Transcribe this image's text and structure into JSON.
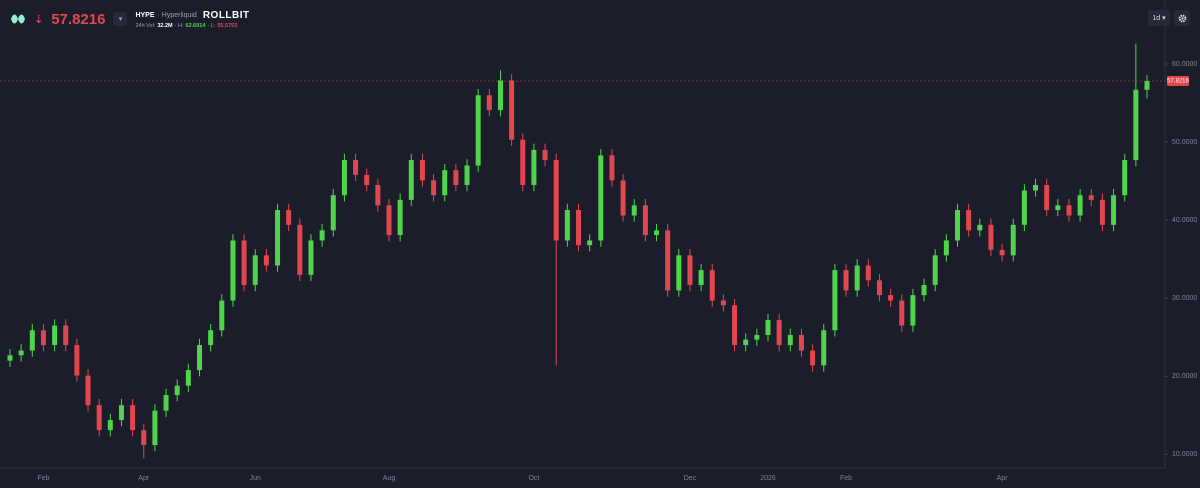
{
  "header": {
    "price": "57.8216",
    "symbol": "HYPE",
    "exchange": "· Hyperliquid",
    "brand": "ROLLBIT",
    "vol_label": "24h Vol:",
    "vol": "32.2M",
    "high_label": "· H:",
    "high": "62.6014",
    "low_label": "· L:",
    "low": "55.5753",
    "timeframe": "1d"
  },
  "chart_data": {
    "type": "candlestick",
    "categories": [
      null,
      null,
      null,
      "Feb",
      null,
      null,
      null,
      null,
      null,
      null,
      null,
      null,
      "Apr",
      null,
      null,
      null,
      null,
      null,
      null,
      null,
      null,
      null,
      "Jun",
      null,
      null,
      null,
      null,
      null,
      null,
      null,
      null,
      null,
      null,
      null,
      "Aug",
      null,
      null,
      null,
      null,
      null,
      null,
      null,
      null,
      null,
      null,
      null,
      null,
      "Oct",
      null,
      null,
      null,
      null,
      null,
      null,
      null,
      null,
      null,
      null,
      null,
      null,
      null,
      "Dec",
      null,
      null,
      null,
      null,
      null,
      null,
      "2026",
      null,
      null,
      null,
      null,
      null,
      null,
      "Feb",
      null,
      null,
      null,
      null,
      null,
      null,
      null,
      null,
      null,
      null,
      null,
      null,
      null,
      "Apr",
      null,
      null,
      null,
      null,
      null,
      null,
      null,
      null,
      null,
      null,
      null,
      null,
      null
    ],
    "open": [
      22.0,
      22.7,
      23.3,
      25.9,
      24.0,
      26.5,
      24.0,
      20.1,
      16.3,
      13.1,
      14.4,
      16.3,
      13.1,
      11.2,
      15.6,
      17.6,
      18.8,
      20.8,
      24.0,
      25.9,
      29.7,
      37.4,
      31.7,
      35.5,
      34.2,
      41.3,
      39.4,
      33.0,
      37.4,
      38.7,
      43.2,
      47.7,
      45.8,
      44.5,
      41.9,
      38.1,
      42.6,
      47.7,
      45.1,
      43.2,
      46.4,
      44.5,
      47.0,
      56.0,
      54.1,
      57.9,
      50.3,
      44.5,
      49.0,
      47.7,
      37.4,
      41.3,
      36.8,
      37.4,
      48.3,
      45.1,
      40.6,
      41.9,
      38.1,
      38.7,
      31.0,
      35.5,
      31.7,
      33.6,
      29.7,
      29.1,
      24.0,
      24.7,
      25.3,
      27.2,
      24.0,
      25.3,
      23.3,
      21.4,
      25.9,
      33.6,
      31.0,
      34.2,
      32.3,
      30.4,
      29.7,
      26.5,
      30.4,
      31.7,
      35.5,
      37.4,
      41.3,
      38.7,
      39.4,
      36.2,
      35.5,
      39.4,
      43.8,
      44.5,
      41.3,
      41.9,
      40.6,
      43.2,
      42.6,
      39.4,
      43.2,
      47.7,
      56.7
    ],
    "high": [
      23.5,
      24.1,
      26.7,
      26.7,
      27.3,
      27.3,
      24.8,
      20.9,
      17.1,
      15.2,
      17.1,
      17.1,
      13.9,
      16.4,
      18.4,
      19.6,
      21.6,
      24.8,
      26.7,
      30.5,
      38.2,
      38.2,
      36.3,
      36.3,
      42.1,
      42.1,
      40.2,
      38.2,
      39.5,
      44.0,
      48.5,
      48.5,
      46.6,
      45.3,
      42.7,
      43.4,
      48.5,
      48.5,
      45.9,
      47.2,
      47.2,
      47.8,
      56.8,
      56.8,
      59.2,
      58.7,
      51.1,
      49.8,
      49.8,
      48.5,
      42.1,
      42.1,
      38.2,
      49.1,
      49.1,
      45.9,
      42.7,
      42.7,
      39.5,
      39.5,
      36.3,
      36.3,
      34.4,
      34.4,
      30.5,
      29.9,
      25.5,
      26.1,
      28.0,
      28.0,
      26.1,
      26.1,
      24.1,
      26.7,
      34.4,
      34.4,
      35.0,
      35.0,
      33.1,
      31.2,
      30.5,
      31.2,
      32.5,
      36.3,
      38.2,
      42.1,
      42.1,
      40.2,
      40.2,
      37.0,
      40.2,
      44.6,
      45.3,
      45.3,
      42.7,
      42.7,
      44.0,
      44.0,
      43.4,
      44.0,
      48.5,
      62.6,
      58.6
    ],
    "low": [
      21.2,
      21.9,
      22.5,
      23.2,
      23.2,
      23.2,
      19.3,
      15.5,
      12.3,
      12.3,
      13.6,
      12.3,
      9.5,
      10.4,
      14.8,
      16.8,
      18.0,
      20.0,
      23.2,
      25.1,
      28.9,
      30.9,
      30.9,
      33.4,
      33.4,
      38.6,
      32.2,
      32.2,
      36.6,
      37.9,
      42.4,
      45.0,
      43.7,
      41.1,
      37.3,
      37.3,
      41.8,
      44.3,
      42.4,
      42.4,
      43.7,
      43.7,
      46.2,
      53.3,
      53.3,
      49.5,
      43.7,
      43.7,
      46.9,
      21.4,
      36.6,
      36.0,
      36.0,
      36.6,
      44.3,
      39.8,
      39.8,
      37.3,
      37.3,
      30.2,
      30.2,
      30.9,
      30.9,
      28.9,
      28.3,
      23.2,
      23.2,
      23.9,
      24.5,
      23.2,
      23.2,
      22.5,
      20.6,
      20.6,
      25.1,
      30.2,
      30.2,
      31.5,
      29.6,
      28.9,
      25.7,
      25.7,
      29.6,
      30.9,
      34.7,
      36.6,
      37.9,
      37.9,
      35.4,
      34.7,
      34.7,
      38.6,
      43.0,
      40.5,
      40.5,
      39.8,
      39.8,
      41.8,
      38.6,
      38.6,
      42.4,
      46.9,
      55.6
    ],
    "close": [
      22.7,
      23.3,
      25.9,
      24.0,
      26.5,
      24.0,
      20.1,
      16.3,
      13.1,
      14.4,
      16.3,
      13.1,
      11.2,
      15.6,
      17.6,
      18.8,
      20.8,
      24.0,
      25.9,
      29.7,
      37.4,
      31.7,
      35.5,
      34.2,
      41.3,
      39.4,
      33.0,
      37.4,
      38.7,
      43.2,
      47.7,
      45.8,
      44.5,
      41.9,
      38.1,
      42.6,
      47.7,
      45.1,
      43.2,
      46.4,
      44.5,
      47.0,
      56.0,
      54.1,
      57.9,
      50.3,
      44.5,
      49.0,
      47.7,
      37.4,
      41.3,
      36.8,
      37.4,
      48.3,
      45.1,
      40.6,
      41.9,
      38.1,
      38.7,
      31.0,
      35.5,
      31.7,
      33.6,
      29.7,
      29.1,
      24.0,
      24.7,
      25.3,
      27.2,
      24.0,
      25.3,
      23.3,
      21.4,
      25.9,
      33.6,
      31.0,
      34.2,
      32.3,
      30.4,
      29.7,
      26.5,
      30.4,
      31.7,
      35.5,
      37.4,
      41.3,
      38.7,
      39.4,
      36.2,
      35.5,
      39.4,
      43.8,
      44.5,
      41.3,
      41.9,
      40.6,
      43.2,
      42.6,
      39.4,
      43.2,
      47.7,
      56.7,
      57.8216
    ],
    "up_color": "#4fd44b",
    "down_color": "#e2464f",
    "ylim": [
      8.0,
      68.2
    ],
    "yticks": [
      {
        "value": 10,
        "label": "10.0000"
      },
      {
        "value": 20,
        "label": "20.0000"
      },
      {
        "value": 30,
        "label": "30.0000"
      },
      {
        "value": 40,
        "label": "40.0000"
      },
      {
        "value": 50,
        "label": "50.0000"
      },
      {
        "value": 60,
        "label": "60.0000"
      }
    ],
    "last_price": {
      "value": 57.8216,
      "label": "57.8216"
    }
  }
}
